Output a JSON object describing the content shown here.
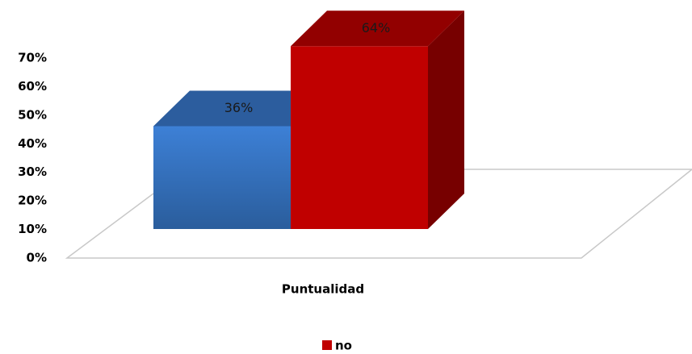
{
  "chart_data": {
    "type": "bar3d",
    "categories": [
      "Puntualidad"
    ],
    "series": [
      {
        "color": "#3a7bd0",
        "values": [
          36
        ],
        "value_labels": [
          "36%"
        ]
      },
      {
        "name": "no",
        "color": "#c00000",
        "values": [
          64
        ],
        "value_labels": [
          "64%"
        ]
      }
    ],
    "ylim": [
      0,
      70
    ],
    "yticks": [
      {
        "value": 0,
        "label": "0%"
      },
      {
        "value": 10,
        "label": "10%"
      },
      {
        "value": 20,
        "label": "20%"
      },
      {
        "value": 30,
        "label": "30%"
      },
      {
        "value": 40,
        "label": "40%"
      },
      {
        "value": 50,
        "label": "50%"
      },
      {
        "value": 60,
        "label": "60%"
      },
      {
        "value": 70,
        "label": "70%"
      }
    ],
    "legend": "bottom"
  }
}
